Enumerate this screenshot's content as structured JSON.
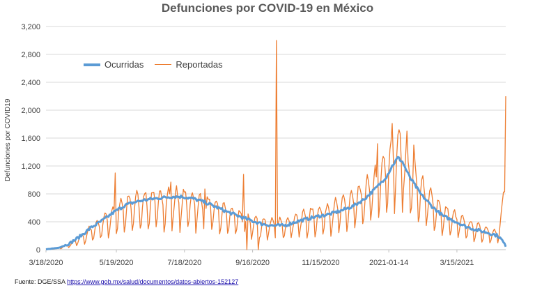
{
  "chart_data": {
    "type": "line",
    "title": "Defunciones por COVID-19 en México",
    "xlabel": "",
    "ylabel": "Defunciones por COVID19",
    "ylim": [
      0,
      3200
    ],
    "yticks": [
      0,
      400,
      800,
      1200,
      1600,
      2000,
      2400,
      2800,
      3200
    ],
    "ytick_labels": [
      "0",
      "400",
      "800",
      "1,200",
      "1,600",
      "2,000",
      "2,400",
      "2,800",
      "3,200"
    ],
    "xlim_days": [
      0,
      405
    ],
    "xticks": [
      {
        "day": 0,
        "label": "3/18/2020"
      },
      {
        "day": 62,
        "label": "5/19/2020"
      },
      {
        "day": 122,
        "label": "7/18/2020"
      },
      {
        "day": 182,
        "label": "9/16/2020"
      },
      {
        "day": 242,
        "label": "11/15/2020"
      },
      {
        "day": 302,
        "label": "2021-01-14"
      },
      {
        "day": 362,
        "label": "3/15/2021"
      }
    ],
    "grid": true,
    "legend_position": "top-left",
    "series": [
      {
        "name": "Ocurridas",
        "color": "#5b9bd5",
        "knots": [
          [
            0,
            5
          ],
          [
            10,
            25
          ],
          [
            20,
            80
          ],
          [
            30,
            190
          ],
          [
            40,
            320
          ],
          [
            50,
            420
          ],
          [
            60,
            540
          ],
          [
            70,
            640
          ],
          [
            80,
            690
          ],
          [
            90,
            720
          ],
          [
            100,
            740
          ],
          [
            110,
            760
          ],
          [
            120,
            760
          ],
          [
            130,
            730
          ],
          [
            140,
            680
          ],
          [
            150,
            610
          ],
          [
            160,
            540
          ],
          [
            170,
            480
          ],
          [
            180,
            420
          ],
          [
            190,
            370
          ],
          [
            200,
            345
          ],
          [
            210,
            345
          ],
          [
            220,
            400
          ],
          [
            230,
            440
          ],
          [
            240,
            480
          ],
          [
            250,
            510
          ],
          [
            260,
            560
          ],
          [
            270,
            620
          ],
          [
            280,
            720
          ],
          [
            290,
            870
          ],
          [
            300,
            1050
          ],
          [
            305,
            1200
          ],
          [
            310,
            1320
          ],
          [
            314,
            1260
          ],
          [
            320,
            1050
          ],
          [
            330,
            800
          ],
          [
            340,
            620
          ],
          [
            350,
            480
          ],
          [
            360,
            410
          ],
          [
            370,
            330
          ],
          [
            380,
            280
          ],
          [
            390,
            240
          ],
          [
            398,
            200
          ],
          [
            402,
            130
          ],
          [
            405,
            50
          ]
        ],
        "noise": 45
      },
      {
        "name": "Reportadas",
        "color": "#ed7d31",
        "knots": [
          [
            0,
            10
          ],
          [
            10,
            20
          ],
          [
            20,
            60
          ],
          [
            30,
            150
          ],
          [
            40,
            260
          ],
          [
            50,
            360
          ],
          [
            60,
            470
          ],
          [
            70,
            560
          ],
          [
            80,
            610
          ],
          [
            90,
            630
          ],
          [
            100,
            640
          ],
          [
            110,
            650
          ],
          [
            120,
            650
          ],
          [
            130,
            620
          ],
          [
            140,
            580
          ],
          [
            150,
            530
          ],
          [
            160,
            480
          ],
          [
            170,
            420
          ],
          [
            180,
            370
          ],
          [
            190,
            340
          ],
          [
            200,
            330
          ],
          [
            210,
            340
          ],
          [
            220,
            390
          ],
          [
            230,
            430
          ],
          [
            240,
            470
          ],
          [
            250,
            500
          ],
          [
            260,
            560
          ],
          [
            270,
            620
          ],
          [
            280,
            720
          ],
          [
            290,
            870
          ],
          [
            300,
            1050
          ],
          [
            305,
            1200
          ],
          [
            310,
            1320
          ],
          [
            314,
            1260
          ],
          [
            320,
            1050
          ],
          [
            330,
            800
          ],
          [
            340,
            620
          ],
          [
            350,
            480
          ],
          [
            360,
            410
          ],
          [
            370,
            330
          ],
          [
            380,
            280
          ],
          [
            390,
            240
          ],
          [
            398,
            200
          ],
          [
            402,
            500
          ],
          [
            405,
            900
          ]
        ],
        "weekly_amplitude": 0.65,
        "spikes": [
          {
            "day": 61,
            "value": 1100
          },
          {
            "day": 110,
            "value": 970
          },
          {
            "day": 140,
            "value": 870
          },
          {
            "day": 174,
            "value": 1080
          },
          {
            "day": 177,
            "value": 0
          },
          {
            "day": 187,
            "value": 0
          },
          {
            "day": 203,
            "value": 3000
          },
          {
            "day": 292,
            "value": 1520
          },
          {
            "day": 305,
            "value": 1810
          },
          {
            "day": 311,
            "value": 1720
          },
          {
            "day": 318,
            "value": 1700
          },
          {
            "day": 324,
            "value": 1500
          },
          {
            "day": 405,
            "value": 2200
          }
        ]
      }
    ]
  },
  "source": {
    "prefix": "Fuente: DGE/SSA",
    "url": "https://www.gob.mx/salud/documentos/datos-abiertos-152127"
  }
}
